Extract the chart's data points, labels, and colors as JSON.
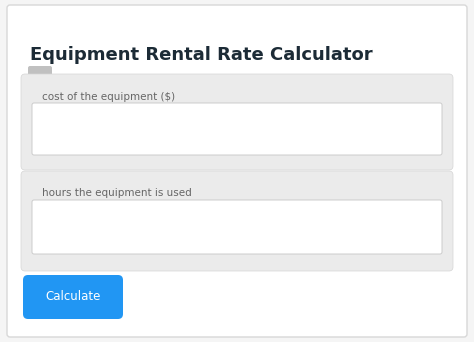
{
  "title": "Equipment Rental Rate Calculator",
  "title_fontsize": 13,
  "title_color": "#1c2b36",
  "figure_bg": "#f5f5f5",
  "card_bg": "#ffffff",
  "card_border_color": "#d8d8d8",
  "field_bg": "#ebebeb",
  "field_border_color": "#d5d5d5",
  "input_bg": "#ffffff",
  "input_border": "#cccccc",
  "label1": "cost of the equipment ($)",
  "label2": "hours the equipment is used",
  "label_color": "#666666",
  "label_fontsize": 7.5,
  "button_text": "Calculate",
  "button_color": "#2196f3",
  "button_text_color": "#ffffff",
  "button_fontsize": 8.5,
  "small_rect_color": "#c0c0c0"
}
